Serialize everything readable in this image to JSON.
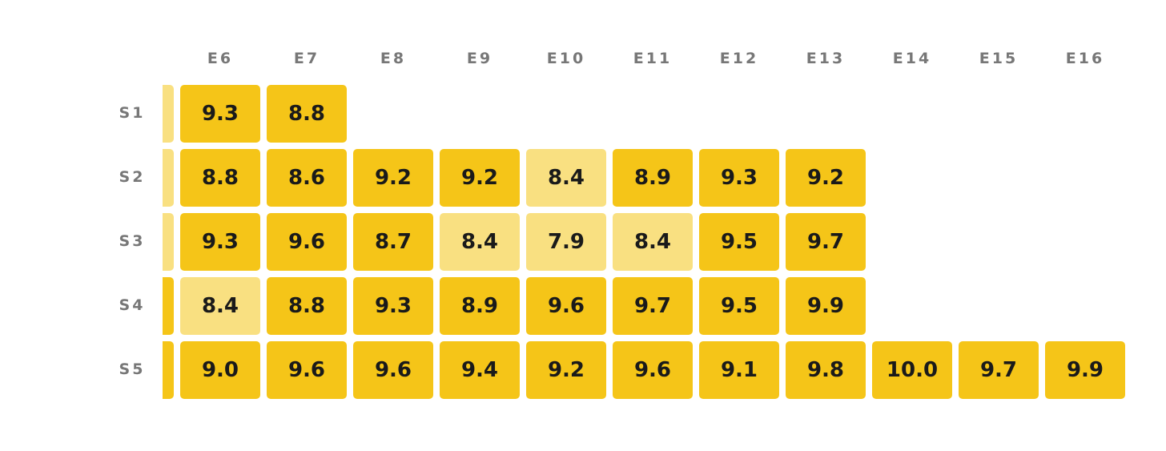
{
  "table": {
    "columns": [
      "E6",
      "E7",
      "E8",
      "E9",
      "E10",
      "E11",
      "E12",
      "E13",
      "E14",
      "E15",
      "E16"
    ],
    "rows": [
      {
        "label": "S1",
        "cells": [
          {
            "text": "9.3",
            "color": "#f5c518"
          },
          {
            "text": "8.8",
            "color": "#f5c518"
          }
        ]
      },
      {
        "label": "S2",
        "cells": [
          {
            "text": "8.8",
            "color": "#f5c518"
          },
          {
            "text": "8.6",
            "color": "#f5c518"
          },
          {
            "text": "9.2",
            "color": "#f5c518"
          },
          {
            "text": "9.2",
            "color": "#f5c518"
          },
          {
            "text": "8.4",
            "color": "#f9e081"
          },
          {
            "text": "8.9",
            "color": "#f5c518"
          },
          {
            "text": "9.3",
            "color": "#f5c518"
          },
          {
            "text": "9.2",
            "color": "#f5c518"
          }
        ]
      },
      {
        "label": "S3",
        "cells": [
          {
            "text": "9.3",
            "color": "#f5c518"
          },
          {
            "text": "9.6",
            "color": "#f5c518"
          },
          {
            "text": "8.7",
            "color": "#f5c518"
          },
          {
            "text": "8.4",
            "color": "#f9e081"
          },
          {
            "text": "7.9",
            "color": "#f9e081"
          },
          {
            "text": "8.4",
            "color": "#f9e081"
          },
          {
            "text": "9.5",
            "color": "#f5c518"
          },
          {
            "text": "9.7",
            "color": "#f5c518"
          }
        ]
      },
      {
        "label": "S4",
        "cells": [
          {
            "text": "8.4",
            "color": "#f9e081"
          },
          {
            "text": "8.8",
            "color": "#f5c518"
          },
          {
            "text": "9.3",
            "color": "#f5c518"
          },
          {
            "text": "8.9",
            "color": "#f5c518"
          },
          {
            "text": "9.6",
            "color": "#f5c518"
          },
          {
            "text": "9.7",
            "color": "#f5c518"
          },
          {
            "text": "9.5",
            "color": "#f5c518"
          },
          {
            "text": "9.9",
            "color": "#f5c518"
          }
        ]
      },
      {
        "label": "S5",
        "cells": [
          {
            "text": "9.0",
            "color": "#f5c518"
          },
          {
            "text": "9.6",
            "color": "#f5c518"
          },
          {
            "text": "9.6",
            "color": "#f5c518"
          },
          {
            "text": "9.4",
            "color": "#f5c518"
          },
          {
            "text": "9.2",
            "color": "#f5c518"
          },
          {
            "text": "9.6",
            "color": "#f5c518"
          },
          {
            "text": "9.1",
            "color": "#f5c518"
          },
          {
            "text": "9.8",
            "color": "#f5c518"
          },
          {
            "text": "10.0",
            "color": "#f5c518"
          },
          {
            "text": "9.7",
            "color": "#f5c518"
          },
          {
            "text": "9.9",
            "color": "#f5c518"
          }
        ]
      }
    ]
  }
}
